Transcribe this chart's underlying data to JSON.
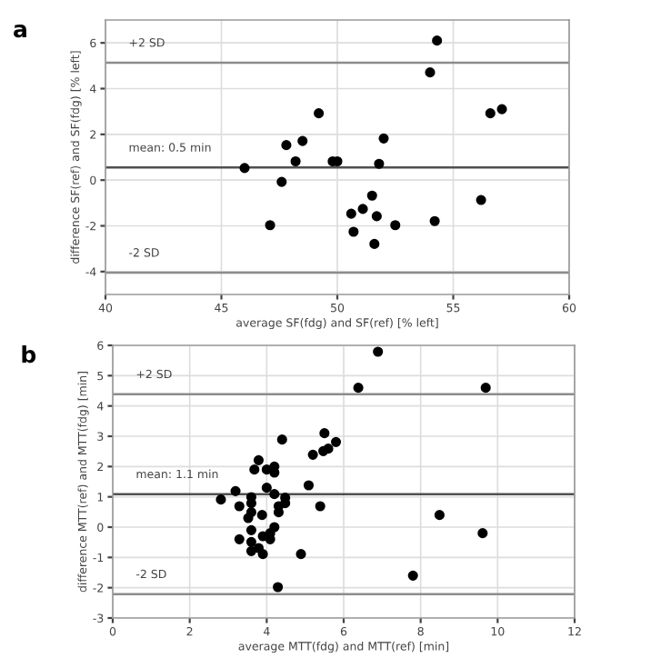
{
  "chart_data": [
    {
      "type": "scatter",
      "title": "a",
      "xlabel": "average SF(fdg) and SF(ref) [% left]",
      "ylabel": "difference SF(ref) and SF(fdg) [% left]",
      "x": [
        46.0,
        47.1,
        47.6,
        47.8,
        48.2,
        48.5,
        49.2,
        49.8,
        50.0,
        50.6,
        50.7,
        51.1,
        51.5,
        51.6,
        51.7,
        51.8,
        52.0,
        52.5,
        54.0,
        54.2,
        54.3,
        56.2,
        56.6,
        57.1
      ],
      "series": [
        {
          "color": "#000000",
          "values": [
            0.53,
            -1.97,
            -0.08,
            1.53,
            0.82,
            1.71,
            2.92,
            0.82,
            0.82,
            -1.47,
            -2.26,
            -1.26,
            -0.68,
            -2.79,
            -1.58,
            0.71,
            1.82,
            -1.97,
            4.71,
            -1.79,
            6.1,
            -0.87,
            2.92,
            3.1
          ]
        }
      ],
      "xlim": [
        40,
        60
      ],
      "xticks": [
        40,
        45,
        50,
        55,
        60
      ],
      "ylim": [
        -5,
        7
      ],
      "yticks": [
        -4,
        -2,
        0,
        2,
        4,
        6
      ],
      "grid": true,
      "marker": "circle",
      "ref_lines": [
        {
          "axis": "y",
          "value": 5.13,
          "label": "+2 SD",
          "color": "#8c8c8c"
        },
        {
          "axis": "y",
          "value": 0.55,
          "label": "mean: 0.5 min",
          "color": "#505050"
        },
        {
          "axis": "y",
          "value": -4.05,
          "label": "-2 SD",
          "color": "#8c8c8c"
        }
      ]
    },
    {
      "type": "scatter",
      "title": "b",
      "xlabel": "average MTT(fdg) and MTT(ref) [min]",
      "ylabel": "difference MTT(ref) and MTT(fdg) [min]",
      "x": [
        6.89,
        6.38,
        9.69,
        4.4,
        5.5,
        5.8,
        5.6,
        5.47,
        5.2,
        3.79,
        3.68,
        4.0,
        4.2,
        4.2,
        5.09,
        4.0,
        3.19,
        4.2,
        4.48,
        2.81,
        3.6,
        3.6,
        4.48,
        3.29,
        4.31,
        5.39,
        3.6,
        4.31,
        3.52,
        3.88,
        8.49,
        4.2,
        4.09,
        3.6,
        9.61,
        3.9,
        4.09,
        3.29,
        3.6,
        3.79,
        3.6,
        3.9,
        4.89,
        7.8,
        4.29
      ],
      "series": [
        {
          "color": "#000000",
          "values": [
            5.79,
            4.6,
            4.6,
            2.89,
            3.1,
            2.81,
            2.59,
            2.51,
            2.39,
            2.21,
            1.9,
            1.9,
            2.0,
            1.8,
            1.38,
            1.3,
            1.19,
            1.09,
            0.97,
            0.91,
            0.99,
            0.79,
            0.79,
            0.69,
            0.69,
            0.69,
            0.49,
            0.49,
            0.3,
            0.4,
            0.4,
            0.0,
            -0.2,
            -0.1,
            -0.2,
            -0.3,
            -0.4,
            -0.4,
            -0.49,
            -0.69,
            -0.79,
            -0.89,
            -0.89,
            -1.6,
            -1.98
          ]
        }
      ],
      "xlim": [
        0,
        12
      ],
      "xticks": [
        0,
        2,
        4,
        6,
        8,
        10,
        12
      ],
      "ylim": [
        -3,
        6
      ],
      "yticks": [
        -3,
        -2,
        -1,
        0,
        1,
        2,
        3,
        4,
        5,
        6
      ],
      "grid": true,
      "marker": "circle",
      "ref_lines": [
        {
          "axis": "y",
          "value": 4.39,
          "label": "+2 SD",
          "color": "#8c8c8c"
        },
        {
          "axis": "y",
          "value": 1.09,
          "label": "mean: 1.1 min",
          "color": "#505050"
        },
        {
          "axis": "y",
          "value": -2.21,
          "label": "-2 SD",
          "color": "#8c8c8c"
        }
      ]
    }
  ]
}
